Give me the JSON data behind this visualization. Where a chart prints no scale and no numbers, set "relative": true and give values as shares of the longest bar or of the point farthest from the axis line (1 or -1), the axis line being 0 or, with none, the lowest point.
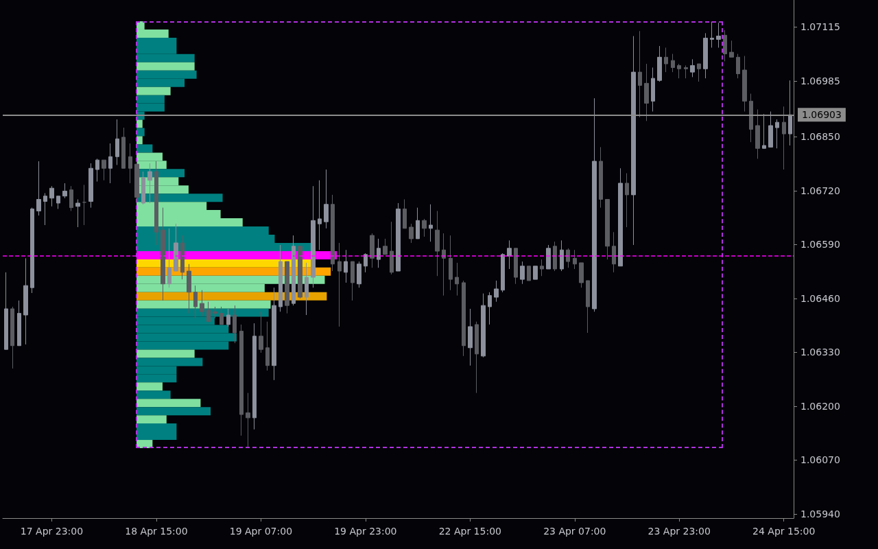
{
  "chart_data": [
    {
      "type": "candlestick",
      "categories": [
        null,
        null,
        null,
        null,
        null,
        null,
        null,
        "17 Apr 23:00",
        null,
        null,
        null,
        null,
        null,
        null,
        null,
        null,
        null,
        null,
        null,
        null,
        null,
        null,
        null,
        "18 Apr 15:00",
        null,
        null,
        null,
        null,
        null,
        null,
        null,
        null,
        null,
        null,
        null,
        null,
        null,
        null,
        null,
        "19 Apr 07:00",
        null,
        null,
        null,
        null,
        null,
        null,
        null,
        null,
        null,
        null,
        null,
        null,
        null,
        null,
        null,
        "19 Apr 23:00",
        null,
        null,
        null,
        null,
        null,
        null,
        null,
        null,
        null,
        null,
        null,
        null,
        null,
        null,
        null,
        "22 Apr 15:00",
        null,
        null,
        null,
        null,
        null,
        null,
        null,
        null,
        null,
        null,
        null,
        null,
        null,
        null,
        null,
        "23 Apr 07:00",
        null,
        null,
        null,
        null,
        null,
        null,
        null,
        null,
        null,
        null,
        null,
        null,
        null,
        null,
        null,
        "23 Apr 23:00",
        null,
        null,
        null,
        null,
        null,
        null,
        null,
        null,
        null,
        null,
        null,
        null,
        null,
        null,
        null,
        "24 Apr 15:00",
        null
      ],
      "ohlc": [
        [
          1.06337,
          1.06523,
          1.06337,
          1.06435
        ],
        [
          1.06435,
          1.0644,
          1.06291,
          1.06346
        ],
        [
          1.06346,
          1.06455,
          1.06346,
          1.06424
        ],
        [
          1.0642,
          1.06557,
          1.06349,
          1.06491
        ],
        [
          1.06486,
          1.06679,
          1.06473,
          1.06676
        ],
        [
          1.06671,
          1.06791,
          1.0666,
          1.06699
        ],
        [
          1.06694,
          1.06714,
          1.06637,
          1.06707
        ],
        [
          1.06702,
          1.06731,
          1.06682,
          1.06726
        ],
        [
          1.0669,
          1.06707,
          1.06676,
          1.06707
        ],
        [
          1.06707,
          1.06738,
          1.06702,
          1.06719
        ],
        [
          1.06722,
          1.06731,
          1.06671,
          1.06679
        ],
        [
          1.06682,
          1.06699,
          1.06632,
          1.0669
        ],
        [
          1.06692,
          1.06734,
          1.06637,
          1.06692
        ],
        [
          1.06694,
          1.06786,
          1.06679,
          1.06774
        ],
        [
          1.06771,
          1.06797,
          1.06742,
          1.06794
        ],
        [
          1.06794,
          1.06794,
          1.06745,
          1.06774
        ],
        [
          1.06774,
          1.06834,
          1.06738,
          1.06802
        ],
        [
          1.06802,
          1.06892,
          1.06782,
          1.06845
        ],
        [
          1.06849,
          1.06872,
          1.06774,
          1.06774
        ],
        [
          1.06802,
          1.06834,
          1.06738,
          1.06774
        ],
        [
          1.06784,
          1.06792,
          1.06692,
          1.06704
        ],
        [
          1.0669,
          1.06766,
          1.06687,
          1.06751
        ],
        [
          1.06745,
          1.06786,
          1.0669,
          1.06766
        ],
        [
          1.06766,
          1.06791,
          1.06589,
          1.0662
        ],
        [
          1.06625,
          1.06679,
          1.06455,
          1.06495
        ],
        [
          1.06495,
          1.06629,
          1.06486,
          1.06534
        ],
        [
          1.06526,
          1.0664,
          1.06526,
          1.06594
        ],
        [
          1.06594,
          1.06612,
          1.06506,
          1.06523
        ],
        [
          1.06526,
          1.06543,
          1.06424,
          1.06475
        ],
        [
          1.06475,
          1.06491,
          1.06412,
          1.0644
        ],
        [
          1.06448,
          1.0648,
          1.06417,
          1.06428
        ],
        [
          1.06432,
          1.06452,
          1.06404,
          1.06404
        ],
        [
          1.06428,
          1.0644,
          1.06412,
          1.06424
        ],
        [
          1.06424,
          1.0644,
          1.06397,
          1.06397
        ],
        [
          1.06397,
          1.06435,
          1.06392,
          1.0642
        ],
        [
          1.0642,
          1.06443,
          1.06352,
          1.06377
        ],
        [
          1.06381,
          1.06397,
          1.06129,
          1.0618
        ],
        [
          1.06184,
          1.06232,
          1.06101,
          1.06172
        ],
        [
          1.06172,
          1.064,
          1.06144,
          1.06369
        ],
        [
          1.06369,
          1.06428,
          1.06329,
          1.06337
        ],
        [
          1.06341,
          1.06404,
          1.06286,
          1.06298
        ],
        [
          1.06298,
          1.06486,
          1.06263,
          1.06443
        ],
        [
          1.0644,
          1.06589,
          1.06428,
          1.06549
        ],
        [
          1.06549,
          1.06549,
          1.06424,
          1.06443
        ],
        [
          1.06448,
          1.06612,
          1.06443,
          1.06586
        ],
        [
          1.06586,
          1.06586,
          1.0646,
          1.06463
        ],
        [
          1.06463,
          1.06546,
          1.0642,
          1.06511
        ],
        [
          1.06511,
          1.06731,
          1.06486,
          1.06648
        ],
        [
          1.0664,
          1.06745,
          1.06577,
          1.06652
        ],
        [
          1.06645,
          1.06771,
          1.06629,
          1.06687
        ],
        [
          1.06687,
          1.0671,
          1.06526,
          1.06543
        ],
        [
          1.06549,
          1.06594,
          1.06392,
          1.06526
        ],
        [
          1.06523,
          1.06577,
          1.06498,
          1.06549
        ],
        [
          1.06549,
          1.06549,
          1.06455,
          1.06498
        ],
        [
          1.06495,
          1.06549,
          1.06486,
          1.06543
        ],
        [
          1.06538,
          1.06569,
          1.06523,
          1.06566
        ],
        [
          1.06612,
          1.06617,
          1.06534,
          1.06557
        ],
        [
          1.06554,
          1.06604,
          1.06534,
          1.06581
        ],
        [
          1.06586,
          1.06604,
          1.06566,
          1.06566
        ],
        [
          1.06574,
          1.06645,
          1.06518,
          1.06523
        ],
        [
          1.06526,
          1.0669,
          1.06526,
          1.06676
        ],
        [
          1.06676,
          1.06699,
          1.06629,
          1.06629
        ],
        [
          1.06632,
          1.0664,
          1.06594,
          1.06604
        ],
        [
          1.06604,
          1.06679,
          1.06604,
          1.06648
        ],
        [
          1.06648,
          1.06652,
          1.06609,
          1.06629
        ],
        [
          1.06629,
          1.06687,
          1.06597,
          1.06637
        ],
        [
          1.06625,
          1.06671,
          1.06514,
          1.06574
        ],
        [
          1.06577,
          1.06617,
          1.06467,
          1.06557
        ],
        [
          1.06557,
          1.06612,
          1.0648,
          1.06506
        ],
        [
          1.06511,
          1.06546,
          1.06467,
          1.06495
        ],
        [
          1.06498,
          1.06503,
          1.06321,
          1.06346
        ],
        [
          1.06341,
          1.06435,
          1.06298,
          1.06392
        ],
        [
          1.06397,
          1.06404,
          1.06232,
          1.06326
        ],
        [
          1.06321,
          1.06472,
          1.06318,
          1.06443
        ],
        [
          1.0644,
          1.06475,
          1.06397,
          1.06467
        ],
        [
          1.06463,
          1.06503,
          1.06452,
          1.06483
        ],
        [
          1.0648,
          1.06569,
          1.06475,
          1.06566
        ],
        [
          1.06562,
          1.066,
          1.06531,
          1.06581
        ],
        [
          1.06581,
          1.06581,
          1.06495,
          1.06511
        ],
        [
          1.06506,
          1.06549,
          1.06495,
          1.06538
        ],
        [
          1.06538,
          1.06538,
          1.06503,
          1.06503
        ],
        [
          1.06506,
          1.06538,
          1.06506,
          1.06538
        ],
        [
          1.06538,
          1.06554,
          1.06514,
          1.06531
        ],
        [
          1.06531,
          1.06589,
          1.06531,
          1.06581
        ],
        [
          1.06586,
          1.06597,
          1.06526,
          1.06531
        ],
        [
          1.06531,
          1.066,
          1.06526,
          1.06577
        ],
        [
          1.06577,
          1.06581,
          1.06534,
          1.06549
        ],
        [
          1.06557,
          1.06577,
          1.06531,
          1.06543
        ],
        [
          1.06546,
          1.06546,
          1.06486,
          1.06498
        ],
        [
          1.06503,
          1.06503,
          1.06377,
          1.0644
        ],
        [
          1.06435,
          1.06943,
          1.06428,
          1.06791
        ],
        [
          1.06791,
          1.06825,
          1.06679,
          1.06699
        ],
        [
          1.06699,
          1.06699,
          1.06554,
          1.06586
        ],
        [
          1.06586,
          1.0662,
          1.06523,
          1.06543
        ],
        [
          1.06538,
          1.06774,
          1.06538,
          1.06738
        ],
        [
          1.06738,
          1.06762,
          1.06632,
          1.0671
        ],
        [
          1.0671,
          1.07093,
          1.06589,
          1.07006
        ],
        [
          1.07006,
          1.07105,
          1.06897,
          1.06974
        ],
        [
          1.06979,
          1.07026,
          1.06888,
          1.06931
        ],
        [
          1.06936,
          1.07017,
          1.06911,
          1.06991
        ],
        [
          1.06986,
          1.07069,
          1.06983,
          1.07042
        ],
        [
          1.07042,
          1.07065,
          1.07006,
          1.07026
        ],
        [
          1.07034,
          1.0705,
          1.07006,
          1.07017
        ],
        [
          1.07022,
          1.07026,
          1.06991,
          1.07014
        ],
        [
          1.07017,
          1.07022,
          1.06991,
          1.07014
        ],
        [
          1.07006,
          1.07037,
          1.06994,
          1.07022
        ],
        [
          1.07026,
          1.07026,
          1.06983,
          1.07014
        ],
        [
          1.07014,
          1.071,
          1.06991,
          1.07088
        ],
        [
          1.07085,
          1.07128,
          1.07065,
          1.07088
        ],
        [
          1.07085,
          1.07125,
          1.07065,
          1.07093
        ],
        [
          1.07095,
          1.07107,
          1.07032,
          1.0705
        ],
        [
          1.07054,
          1.07082,
          1.07042,
          1.07042
        ],
        [
          1.07042,
          1.0705,
          1.06991,
          1.07002
        ],
        [
          1.07011,
          1.07045,
          1.06911,
          1.06936
        ],
        [
          1.06936,
          1.06954,
          1.06837,
          1.06868
        ],
        [
          1.06877,
          1.06916,
          1.06797,
          1.06822
        ],
        [
          1.06822,
          1.06905,
          1.06822,
          1.06829
        ],
        [
          1.06825,
          1.06911,
          1.06825,
          1.06877
        ],
        [
          1.06872,
          1.06892,
          1.06822,
          1.06885
        ],
        [
          1.06885,
          1.06923,
          1.06771,
          1.06857
        ],
        [
          1.06857,
          1.06986,
          1.06829,
          1.06903
        ]
      ],
      "colors": [
        "#8d919d",
        "#5c5d63",
        "#8d919d",
        "#8d919d",
        "#8d919d",
        "#8d919d",
        "#8d919d",
        "#8d919d",
        "#8d919d",
        "#8d919d",
        "#5c5d63",
        "#8d919d",
        "#5c5d63",
        "#8d919d",
        "#8d919d",
        "#5c5d63",
        "#8d919d",
        "#8d919d",
        "#5c5d63",
        "#5c5d63",
        "#5c5d63",
        "#8d919d",
        "#8d919d",
        "#5c5d63",
        "#5c5d63",
        "#8d919d",
        "#8d919d",
        "#5c5d63",
        "#5c5d63",
        "#5c5d63",
        "#5c5d63",
        "#5c5d63",
        "#5c5d63",
        "#5c5d63",
        "#8d919d",
        "#5c5d63",
        "#5c5d63",
        "#5c5d63",
        "#8d919d",
        "#5c5d63",
        "#5c5d63",
        "#8d919d",
        "#8d919d",
        "#5c5d63",
        "#8d919d",
        "#5c5d63",
        "#8d919d",
        "#8d919d",
        "#8d919d",
        "#8d919d",
        "#5c5d63",
        "#5c5d63",
        "#8d919d",
        "#5c5d63",
        "#8d919d",
        "#8d919d",
        "#5c5d63",
        "#8d919d",
        "#5c5d63",
        "#5c5d63",
        "#8d919d",
        "#5c5d63",
        "#5c5d63",
        "#8d919d",
        "#5c5d63",
        "#8d919d",
        "#5c5d63",
        "#5c5d63",
        "#5c5d63",
        "#5c5d63",
        "#5c5d63",
        "#8d919d",
        "#5c5d63",
        "#8d919d",
        "#8d919d",
        "#8d919d",
        "#8d919d",
        "#8d919d",
        "#5c5d63",
        "#8d919d",
        "#5c5d63",
        "#8d919d",
        "#5c5d63",
        "#8d919d",
        "#5c5d63",
        "#8d919d",
        "#5c5d63",
        "#5c5d63",
        "#5c5d63",
        "#5c5d63",
        "#8d919d",
        "#5c5d63",
        "#5c5d63",
        "#5c5d63",
        "#8d919d",
        "#5c5d63",
        "#8d919d",
        "#5c5d63",
        "#5c5d63",
        "#8d919d",
        "#8d919d",
        "#5c5d63",
        "#5c5d63",
        "#5c5d63",
        "#5c5d63",
        "#8d919d",
        "#5c5d63",
        "#8d919d",
        "#8d919d",
        "#8d919d",
        "#5c5d63",
        "#5c5d63",
        "#5c5d63",
        "#5c5d63",
        "#5c5d63",
        "#5c5d63",
        "#8d919d",
        "#8d919d",
        "#8d919d",
        "#5c5d63",
        "#8d919d"
      ],
      "ylim": [
        1.0593,
        1.0718
      ],
      "yticks": [
        {
          "value": 1.0594,
          "label": "1.05940"
        },
        {
          "value": 1.0607,
          "label": "1.06070"
        },
        {
          "value": 1.062,
          "label": "1.06200"
        },
        {
          "value": 1.0633,
          "label": "1.06330"
        },
        {
          "value": 1.0646,
          "label": "1.06460"
        },
        {
          "value": 1.0659,
          "label": "1.06590"
        },
        {
          "value": 1.0672,
          "label": "1.06720"
        },
        {
          "value": 1.0685,
          "label": "1.06850"
        },
        {
          "value": 1.06985,
          "label": "1.06985"
        },
        {
          "value": 1.07115,
          "label": "1.07115"
        }
      ],
      "ref_lines": [
        {
          "axis": "y",
          "value": 1.06903,
          "label": "1.06903",
          "color": "#8c8c8c",
          "line_style": "solid"
        },
        {
          "axis": "y",
          "value": 1.06563,
          "label": null,
          "color": "#ff00ff",
          "line_style": "dashed"
        }
      ]
    },
    {
      "type": "bar",
      "orientation": "horizontal",
      "relative": true,
      "categories": [
        null,
        null,
        null,
        null,
        null,
        null,
        null,
        null,
        null,
        null,
        null,
        null,
        null,
        null,
        null,
        null,
        null,
        null,
        null,
        null,
        null,
        null,
        null,
        null,
        null,
        null,
        null,
        null,
        null,
        null,
        null,
        null,
        null,
        null,
        null,
        null,
        null,
        null,
        null,
        null,
        null,
        null,
        null,
        null,
        null,
        null,
        null,
        null,
        null,
        null,
        null,
        null
      ],
      "values": [
        0.04,
        0.16,
        0.2,
        0.2,
        0.29,
        0.29,
        0.3,
        0.24,
        0.17,
        0.14,
        0.14,
        0.04,
        0.03,
        0.04,
        0.03,
        0.08,
        0.13,
        0.15,
        0.24,
        0.21,
        0.26,
        0.43,
        0.35,
        0.42,
        0.53,
        0.66,
        0.69,
        0.87,
        1,
        0.87,
        0.97,
        0.94,
        0.64,
        0.95,
        0.67,
        0.66,
        0.39,
        0.46,
        0.5,
        0.46,
        0.29,
        0.33,
        0.2,
        0.2,
        0.13,
        0.17,
        0.32,
        0.37,
        0.15,
        0.2,
        0.2,
        0.08
      ],
      "colors": [
        "#80e0a0",
        "#80e0a0",
        "#008080",
        "#008080",
        "#008080",
        "#80e0a0",
        "#008080",
        "#008080",
        "#80e0a0",
        "#008080",
        "#008080",
        "#008080",
        "#80e0a0",
        "#008080",
        "#80e0a0",
        "#008080",
        "#80e0a0",
        "#80e0a0",
        "#008080",
        "#80e0a0",
        "#80e0a0",
        "#008080",
        "#80e0a0",
        "#80e0a0",
        "#80e0a0",
        "#008080",
        "#008080",
        "#008080",
        "#ff00ff",
        "#ffd700",
        "#ffa500",
        "#80e0a0",
        "#80e0a0",
        "#e8a200",
        "#80e0a0",
        "#008080",
        "#008080",
        "#008080",
        "#008080",
        "#008080",
        "#80e0a0",
        "#008080",
        "#008080",
        "#008080",
        "#80e0a0",
        "#008080",
        "#80e0a0",
        "#008080",
        "#80e0a0",
        "#008080",
        "#008080",
        "#80e0a0"
      ]
    }
  ]
}
